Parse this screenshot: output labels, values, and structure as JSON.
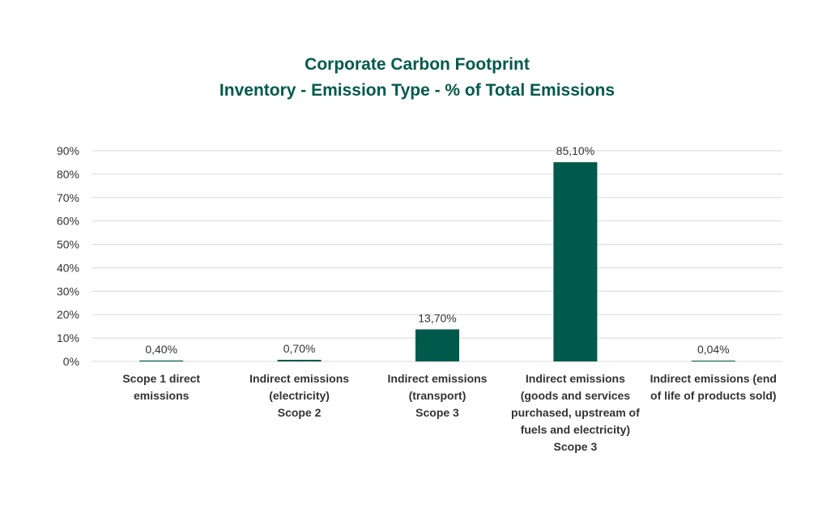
{
  "colors": {
    "bar": "#005A4B",
    "title": "#005A4B",
    "grid": "#d9d9d9",
    "text": "#333333"
  },
  "chart_data": {
    "type": "bar",
    "title_lines": [
      "Corporate Carbon Footprint",
      "Inventory - Emission Type - % of Total Emissions"
    ],
    "xlabel": "",
    "ylabel": "",
    "ylim": [
      0,
      90
    ],
    "y_ticks": [
      0,
      10,
      20,
      30,
      40,
      50,
      60,
      70,
      80,
      90
    ],
    "y_tick_labels": [
      "0%",
      "10%",
      "20%",
      "30%",
      "40%",
      "50%",
      "60%",
      "70%",
      "80%",
      "90%"
    ],
    "grid": true,
    "legend": "none",
    "categories": [
      [
        "Scope 1 direct",
        "emissions"
      ],
      [
        "Indirect emissions",
        "(electricity)",
        "Scope 2"
      ],
      [
        "Indirect emissions",
        "(transport)",
        "Scope 3"
      ],
      [
        "Indirect emissions",
        "(goods and services",
        "purchased, upstream of",
        "fuels and electricity)",
        "Scope 3"
      ],
      [
        "Indirect emissions (end",
        "of life of products sold)"
      ]
    ],
    "values": [
      0.4,
      0.7,
      13.7,
      85.1,
      0.04
    ],
    "data_labels": [
      "0,40%",
      "0,70%",
      "13,70%",
      "85,10%",
      "0,04%"
    ]
  }
}
